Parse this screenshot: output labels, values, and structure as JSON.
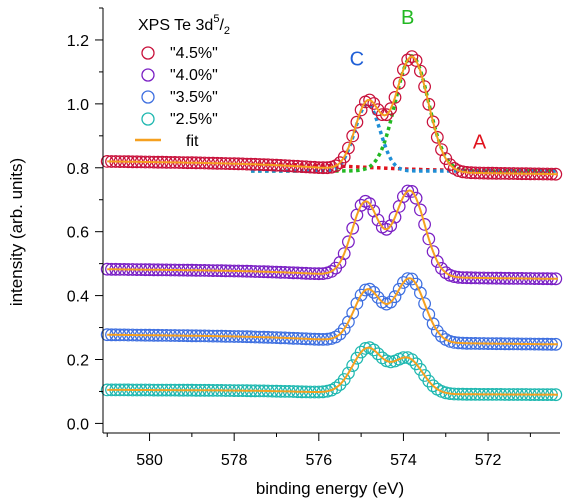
{
  "chart_data": {
    "type": "scatter",
    "title": "",
    "xlabel": "binding energy (eV)",
    "ylabel": "intensity (arb. units)",
    "xlim": [
      581.1,
      570.3
    ],
    "ylim": [
      -0.03,
      1.3
    ],
    "x_reversed": true,
    "x_ticks": [
      580,
      578,
      576,
      574,
      572
    ],
    "y_ticks": [
      0.0,
      0.2,
      0.4,
      0.6,
      0.8,
      1.0,
      1.2
    ],
    "y_tick_labels": [
      "0.0",
      "0.2",
      "0.4",
      "0.6",
      "0.8",
      "1.0",
      "1.2"
    ],
    "grid": false,
    "legend": {
      "position": "top-left",
      "title_main": "XPS  Te 3d",
      "title_sup": "5",
      "title_slash": "/",
      "title_sub": "2",
      "entries": [
        "\"4.5%\"",
        "\"4.0%\"",
        "\"3.5%\"",
        "\"2.5%\"",
        "fit"
      ]
    },
    "annotations": [
      {
        "text": "C",
        "x": 575.1,
        "y": 1.12,
        "color": "#1f5fd6"
      },
      {
        "text": "B",
        "x": 573.9,
        "y": 1.25,
        "color": "#22b822"
      },
      {
        "text": "A",
        "x": 572.2,
        "y": 0.86,
        "color": "#e0141e"
      }
    ],
    "series": [
      {
        "name": "\"4.5%\"",
        "color": "#c8103a",
        "base": 0.81,
        "end": 0.79,
        "bg_rise": 0.02,
        "peaks": [
          {
            "x": 573.8,
            "h": 0.36,
            "w": 0.55
          },
          {
            "x": 574.85,
            "h": 0.21,
            "w": 0.42
          }
        ]
      },
      {
        "name": "\"4.0%\"",
        "color": "#7a1fc4",
        "base": 0.475,
        "end": 0.46,
        "bg_rise": 0.015,
        "peaks": [
          {
            "x": 573.85,
            "h": 0.27,
            "w": 0.5
          },
          {
            "x": 574.9,
            "h": 0.23,
            "w": 0.45
          }
        ]
      },
      {
        "name": "\"3.5%\"",
        "color": "#3e6fe0",
        "base": 0.27,
        "end": 0.255,
        "bg_rise": 0.015,
        "peaks": [
          {
            "x": 573.85,
            "h": 0.2,
            "w": 0.5
          },
          {
            "x": 574.85,
            "h": 0.16,
            "w": 0.45
          }
        ]
      },
      {
        "name": "\"2.5%\"",
        "color": "#1fb8b0",
        "base": 0.1,
        "end": 0.095,
        "bg_rise": 0.01,
        "peaks": [
          {
            "x": 573.9,
            "h": 0.11,
            "w": 0.5
          },
          {
            "x": 574.85,
            "h": 0.14,
            "w": 0.5
          }
        ]
      }
    ],
    "fit_color": "#f5a020",
    "components": [
      {
        "label": "A",
        "color": "#e0141e",
        "kind": "background",
        "from": 0.812,
        "to": 0.79
      },
      {
        "label": "B",
        "color": "#22b822",
        "kind": "peak",
        "x": 573.8,
        "h": 0.36,
        "w": 0.55,
        "base": 0.79
      },
      {
        "label": "C",
        "color": "#1f8fd6",
        "kind": "peak",
        "x": 574.85,
        "h": 0.21,
        "w": 0.42,
        "base": 0.79
      }
    ]
  }
}
